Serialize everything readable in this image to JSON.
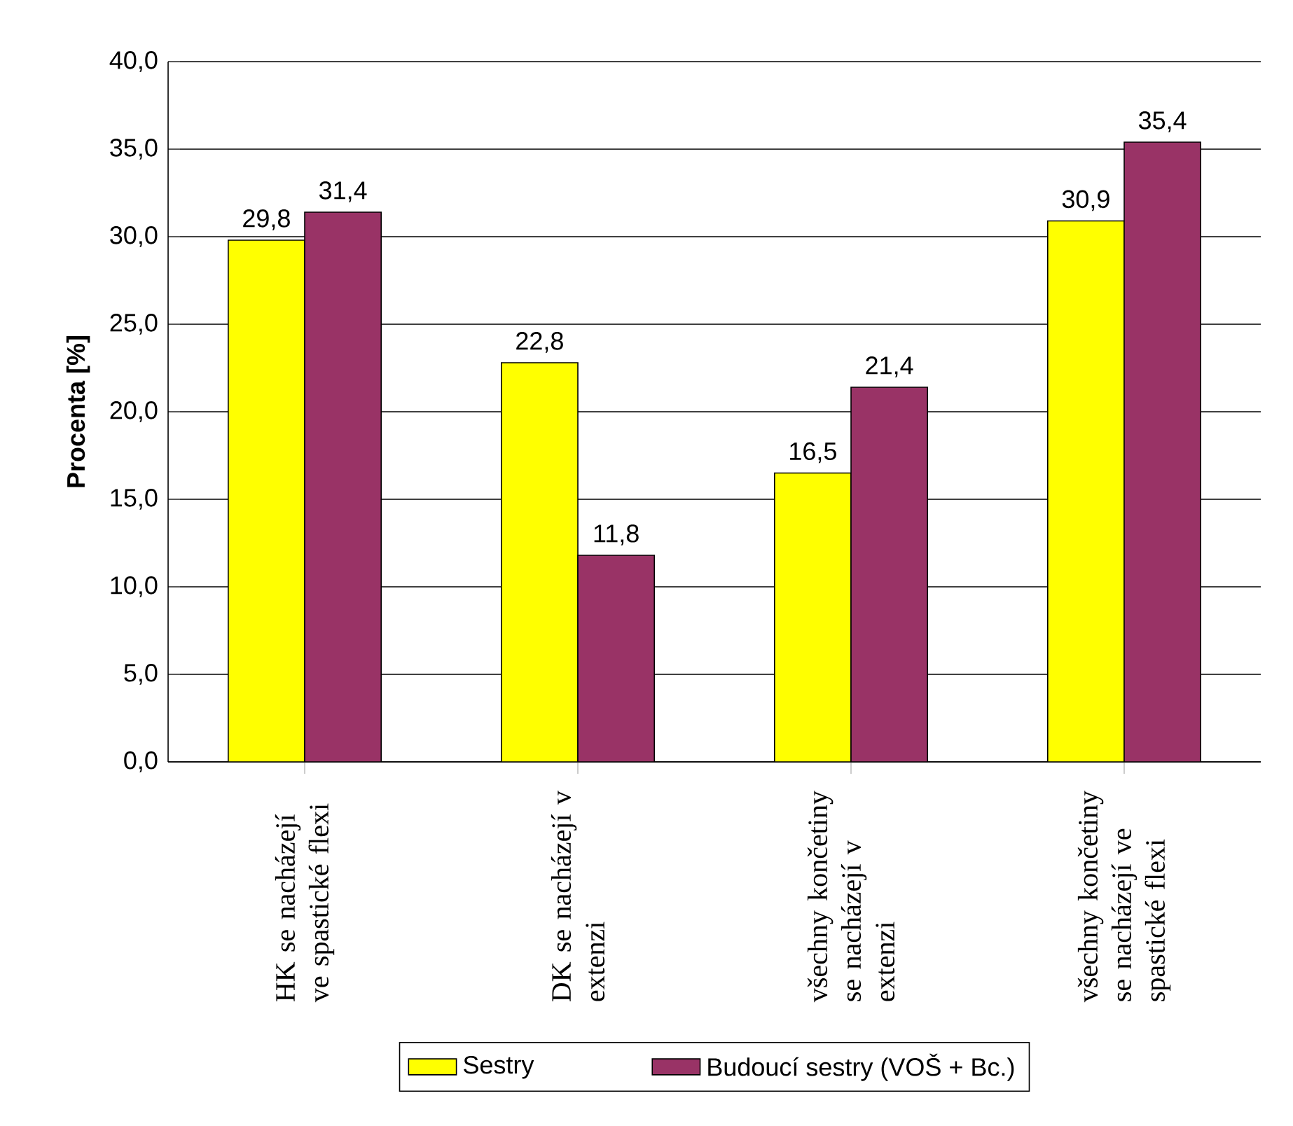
{
  "chart_data": {
    "type": "bar",
    "ylabel": "Procenta [%]",
    "categories": [
      "HK se nacházejí ve spastické flexi",
      "DK se nacházejí v extenzi",
      "všechny končetiny se nacházejí v extenzi",
      "všechny končetiny se nacházejí ve spastické flexi"
    ],
    "series": [
      {
        "name": "Sestry",
        "color": "#ffff00",
        "values": [
          29.8,
          22.8,
          16.5,
          30.9
        ],
        "value_labels": [
          "29,8",
          "22,8",
          "16,5",
          "30,9"
        ]
      },
      {
        "name": "Budoucí sestry (VOŠ + Bc.)",
        "color": "#993366",
        "values": [
          31.4,
          11.8,
          21.4,
          35.4
        ],
        "value_labels": [
          "31,4",
          "11,8",
          "21,4",
          "35,4"
        ]
      }
    ],
    "ylim": [
      0,
      40
    ],
    "yticks": [
      {
        "value": 0,
        "label": "0,0"
      },
      {
        "value": 5,
        "label": "5,0"
      },
      {
        "value": 10,
        "label": "10,0"
      },
      {
        "value": 15,
        "label": "15,0"
      },
      {
        "value": 20,
        "label": "20,0"
      },
      {
        "value": 25,
        "label": "25,0"
      },
      {
        "value": 30,
        "label": "30,0"
      },
      {
        "value": 35,
        "label": "35,0"
      },
      {
        "value": 40,
        "label": "40,0"
      }
    ],
    "grid": "y",
    "legend": "bottom"
  }
}
